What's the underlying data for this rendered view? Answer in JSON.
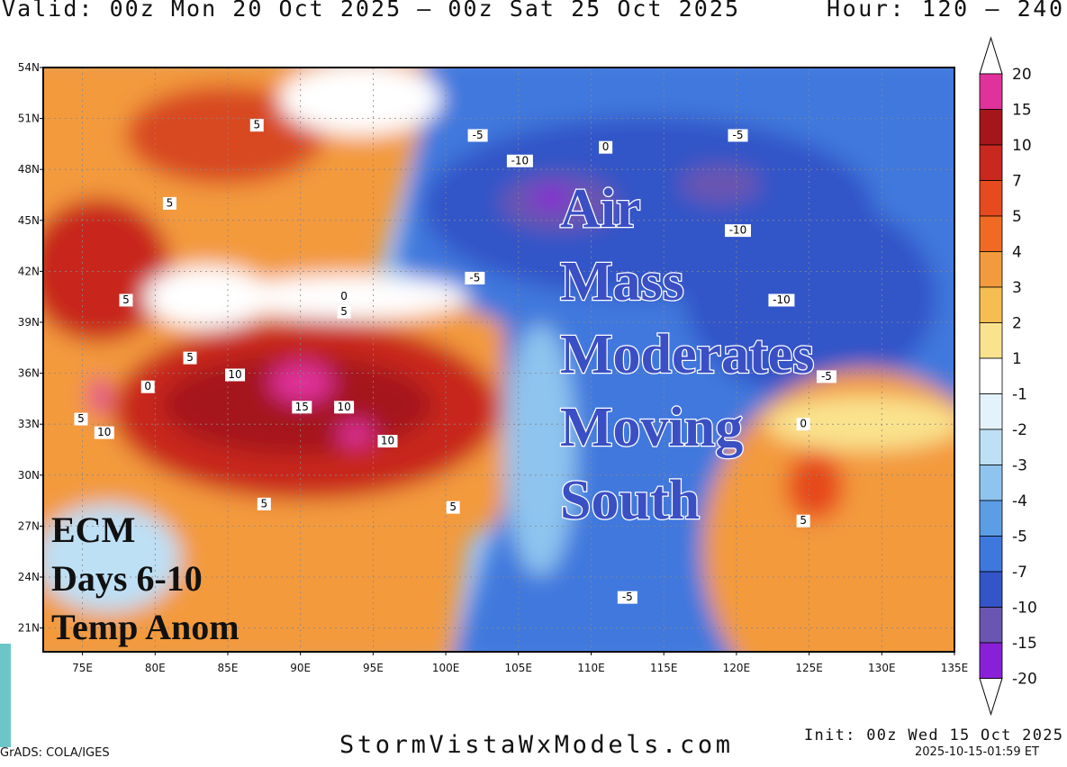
{
  "header": {
    "valid": "Valid: 00z Mon 20 Oct 2025 – 00z Sat 25 Oct 2025",
    "hour": "Hour: 120 – 240"
  },
  "map": {
    "lonlim": [
      72.3,
      135
    ],
    "latlim": [
      19.6,
      54
    ],
    "grid": true,
    "lat_ticks": [
      {
        "value": 54,
        "label": "54N"
      },
      {
        "value": 51,
        "label": "51N"
      },
      {
        "value": 48,
        "label": "48N"
      },
      {
        "value": 45,
        "label": "45N"
      },
      {
        "value": 42,
        "label": "42N"
      },
      {
        "value": 39,
        "label": "39N"
      },
      {
        "value": 36,
        "label": "36N"
      },
      {
        "value": 33,
        "label": "33N"
      },
      {
        "value": 30,
        "label": "30N"
      },
      {
        "value": 27,
        "label": "27N"
      },
      {
        "value": 24,
        "label": "24N"
      },
      {
        "value": 21,
        "label": "21N"
      }
    ],
    "lon_ticks": [
      {
        "value": 75,
        "label": "75E"
      },
      {
        "value": 80,
        "label": "80E"
      },
      {
        "value": 85,
        "label": "85E"
      },
      {
        "value": 90,
        "label": "90E"
      },
      {
        "value": 95,
        "label": "95E"
      },
      {
        "value": 100,
        "label": "100E"
      },
      {
        "value": 105,
        "label": "105E"
      },
      {
        "value": 110,
        "label": "110E"
      },
      {
        "value": 115,
        "label": "115E"
      },
      {
        "value": 120,
        "label": "120E"
      },
      {
        "value": 125,
        "label": "125E"
      },
      {
        "value": 130,
        "label": "130E"
      },
      {
        "value": 135,
        "label": "135E"
      }
    ],
    "contour_labels": [
      {
        "lon": 87.0,
        "lat": 50.6,
        "value": 5
      },
      {
        "lon": 102.2,
        "lat": 50.0,
        "value": -5
      },
      {
        "lon": 105.1,
        "lat": 48.5,
        "value": -10
      },
      {
        "lon": 120.1,
        "lat": 50.0,
        "value": -5
      },
      {
        "lon": 111.0,
        "lat": 49.3,
        "value": 0
      },
      {
        "lon": 81.0,
        "lat": 46.0,
        "value": 5
      },
      {
        "lon": 120.1,
        "lat": 44.4,
        "value": -10
      },
      {
        "lon": 102.0,
        "lat": 41.6,
        "value": -5
      },
      {
        "lon": 123.1,
        "lat": 40.3,
        "value": -10
      },
      {
        "lon": 78.0,
        "lat": 40.3,
        "value": 5
      },
      {
        "lon": 93.0,
        "lat": 40.5,
        "value": 0
      },
      {
        "lon": 93.0,
        "lat": 39.6,
        "value": 5
      },
      {
        "lon": 82.4,
        "lat": 36.9,
        "value": 5
      },
      {
        "lon": 85.5,
        "lat": 35.9,
        "value": 10
      },
      {
        "lon": 126.2,
        "lat": 35.8,
        "value": -5
      },
      {
        "lon": 79.5,
        "lat": 35.2,
        "value": 0
      },
      {
        "lon": 90.1,
        "lat": 34.0,
        "value": 15
      },
      {
        "lon": 93.0,
        "lat": 34.0,
        "value": 10
      },
      {
        "lon": 74.9,
        "lat": 33.3,
        "value": 5
      },
      {
        "lon": 76.5,
        "lat": 32.5,
        "value": 10
      },
      {
        "lon": 96.0,
        "lat": 32.0,
        "value": 10
      },
      {
        "lon": 124.6,
        "lat": 33.0,
        "value": 0
      },
      {
        "lon": 87.5,
        "lat": 28.3,
        "value": 5
      },
      {
        "lon": 100.5,
        "lat": 28.1,
        "value": 5
      },
      {
        "lon": 124.6,
        "lat": 27.3,
        "value": 5
      },
      {
        "lon": 112.5,
        "lat": 22.8,
        "value": -5
      }
    ],
    "overlay_lines": [
      "Air",
      "Mass",
      "Moderates",
      "Moving",
      "South"
    ],
    "model_lines": [
      "ECM",
      "Days 6-10",
      "Temp Anom"
    ]
  },
  "colorbar": {
    "ticks": [
      20,
      15,
      10,
      7,
      5,
      4,
      3,
      2,
      1,
      -1,
      -2,
      -3,
      -4,
      -5,
      -7,
      -10,
      -15,
      -20
    ],
    "colors": [
      "#e0329a",
      "#a5161b",
      "#c8281e",
      "#e64a1e",
      "#f06a23",
      "#f39a3c",
      "#f5bd52",
      "#fae38e",
      "#ffffff",
      "#e4f3fb",
      "#bde0f5",
      "#8ec4ee",
      "#5c9ee6",
      "#3f78dd",
      "#3355c8",
      "#6a55b0",
      "#8a1fd8"
    ]
  },
  "footer": {
    "site": "StormVistaWxModels.com",
    "init": "Init: 00z Wed 15 Oct 2025",
    "timestamp": "2025-10-15-01:59 ET",
    "credit": "GrADS: COLA/IGES"
  }
}
